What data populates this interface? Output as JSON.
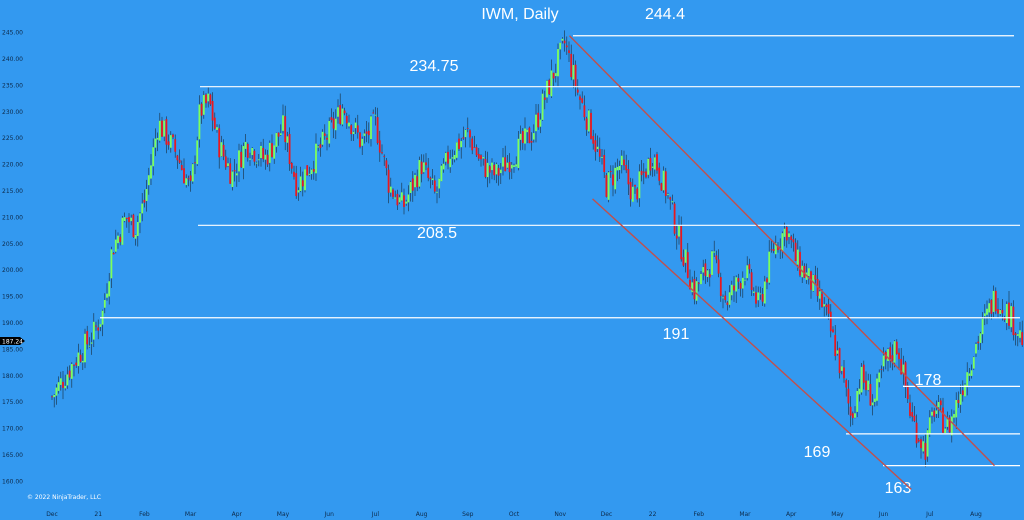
{
  "chart_data": {
    "type": "candlestick",
    "title": "IWM, Daily",
    "copyright": "© 2022 NinjaTrader, LLC",
    "current_price": "187.24",
    "ylim": [
      158,
      247
    ],
    "y_ticks": [
      {
        "v": 245,
        "t": "245.00"
      },
      {
        "v": 240,
        "t": "240.00"
      },
      {
        "v": 235,
        "t": "235.00"
      },
      {
        "v": 230,
        "t": "230.00"
      },
      {
        "v": 225,
        "t": "225.00"
      },
      {
        "v": 220,
        "t": "220.00"
      },
      {
        "v": 215,
        "t": "215.00"
      },
      {
        "v": 210,
        "t": "210.00"
      },
      {
        "v": 205,
        "t": "205.00"
      },
      {
        "v": 200,
        "t": "200.00"
      },
      {
        "v": 195,
        "t": "195.00"
      },
      {
        "v": 190,
        "t": "190.00"
      },
      {
        "v": 185,
        "t": "185.00"
      },
      {
        "v": 180,
        "t": "180.00"
      },
      {
        "v": 175,
        "t": "175.00"
      },
      {
        "v": 170,
        "t": "170.00"
      },
      {
        "v": 165,
        "t": "165.00"
      },
      {
        "v": 160,
        "t": "160.00"
      }
    ],
    "x_ticks": [
      "Dec",
      "21",
      "Feb",
      "Mar",
      "Apr",
      "May",
      "Jun",
      "Jul",
      "Aug",
      "Sep",
      "Oct",
      "Nov",
      "Dec",
      "22",
      "Feb",
      "Mar",
      "Apr",
      "May",
      "Jun",
      "Jul",
      "Aug"
    ],
    "levels": [
      {
        "value": 244.4,
        "label": "244.4"
      },
      {
        "value": 234.75,
        "label": "234.75"
      },
      {
        "value": 208.5,
        "label": "208.5"
      },
      {
        "value": 191,
        "label": "191"
      },
      {
        "value": 178,
        "label": "178"
      },
      {
        "value": 169,
        "label": "169"
      },
      {
        "value": 163,
        "label": "163"
      }
    ],
    "trend_channel": {
      "upper": [
        {
          "month": 11.2,
          "price": 244.4
        },
        {
          "month": 20.4,
          "price": 163
        }
      ],
      "lower": [
        {
          "month": 11.7,
          "price": 213.5
        },
        {
          "month": 18.6,
          "price": 158.5
        }
      ]
    },
    "close_path": [
      {
        "m": 0.0,
        "p": 176
      },
      {
        "m": 0.5,
        "p": 183
      },
      {
        "m": 0.9,
        "p": 188
      },
      {
        "m": 1.1,
        "p": 192
      },
      {
        "m": 1.3,
        "p": 204
      },
      {
        "m": 1.6,
        "p": 210
      },
      {
        "m": 1.8,
        "p": 208
      },
      {
        "m": 2.0,
        "p": 213
      },
      {
        "m": 2.3,
        "p": 228
      },
      {
        "m": 2.7,
        "p": 222
      },
      {
        "m": 3.0,
        "p": 215
      },
      {
        "m": 3.2,
        "p": 230
      },
      {
        "m": 3.4,
        "p": 232
      },
      {
        "m": 3.6,
        "p": 224
      },
      {
        "m": 3.9,
        "p": 218
      },
      {
        "m": 4.2,
        "p": 224
      },
      {
        "m": 4.6,
        "p": 221
      },
      {
        "m": 5.0,
        "p": 227
      },
      {
        "m": 5.3,
        "p": 216
      },
      {
        "m": 5.6,
        "p": 220
      },
      {
        "m": 6.0,
        "p": 226
      },
      {
        "m": 6.3,
        "p": 231
      },
      {
        "m": 6.7,
        "p": 224
      },
      {
        "m": 7.0,
        "p": 228
      },
      {
        "m": 7.3,
        "p": 216
      },
      {
        "m": 7.6,
        "p": 212
      },
      {
        "m": 8.0,
        "p": 220
      },
      {
        "m": 8.3,
        "p": 214
      },
      {
        "m": 8.6,
        "p": 222
      },
      {
        "m": 9.0,
        "p": 226
      },
      {
        "m": 9.3,
        "p": 220
      },
      {
        "m": 9.6,
        "p": 218
      },
      {
        "m": 10.0,
        "p": 222
      },
      {
        "m": 10.4,
        "p": 226
      },
      {
        "m": 10.8,
        "p": 236
      },
      {
        "m": 11.1,
        "p": 243
      },
      {
        "m": 11.4,
        "p": 233
      },
      {
        "m": 11.7,
        "p": 226
      },
      {
        "m": 12.0,
        "p": 216
      },
      {
        "m": 12.3,
        "p": 220
      },
      {
        "m": 12.6,
        "p": 214
      },
      {
        "m": 13.0,
        "p": 222
      },
      {
        "m": 13.3,
        "p": 215
      },
      {
        "m": 13.6,
        "p": 205
      },
      {
        "m": 13.9,
        "p": 196
      },
      {
        "m": 14.3,
        "p": 202
      },
      {
        "m": 14.6,
        "p": 194
      },
      {
        "m": 15.0,
        "p": 200
      },
      {
        "m": 15.3,
        "p": 193
      },
      {
        "m": 15.6,
        "p": 204
      },
      {
        "m": 15.9,
        "p": 208
      },
      {
        "m": 16.1,
        "p": 202
      },
      {
        "m": 16.4,
        "p": 198
      },
      {
        "m": 16.7,
        "p": 193
      },
      {
        "m": 17.0,
        "p": 184
      },
      {
        "m": 17.3,
        "p": 172
      },
      {
        "m": 17.5,
        "p": 180
      },
      {
        "m": 17.8,
        "p": 175
      },
      {
        "m": 18.0,
        "p": 182
      },
      {
        "m": 18.3,
        "p": 186
      },
      {
        "m": 18.6,
        "p": 172
      },
      {
        "m": 18.9,
        "p": 166
      },
      {
        "m": 19.1,
        "p": 174
      },
      {
        "m": 19.4,
        "p": 170
      },
      {
        "m": 19.7,
        "p": 178
      },
      {
        "m": 20.0,
        "p": 186
      },
      {
        "m": 20.4,
        "p": 195
      },
      {
        "m": 20.7,
        "p": 192
      },
      {
        "m": 21.0,
        "p": 187
      }
    ]
  }
}
